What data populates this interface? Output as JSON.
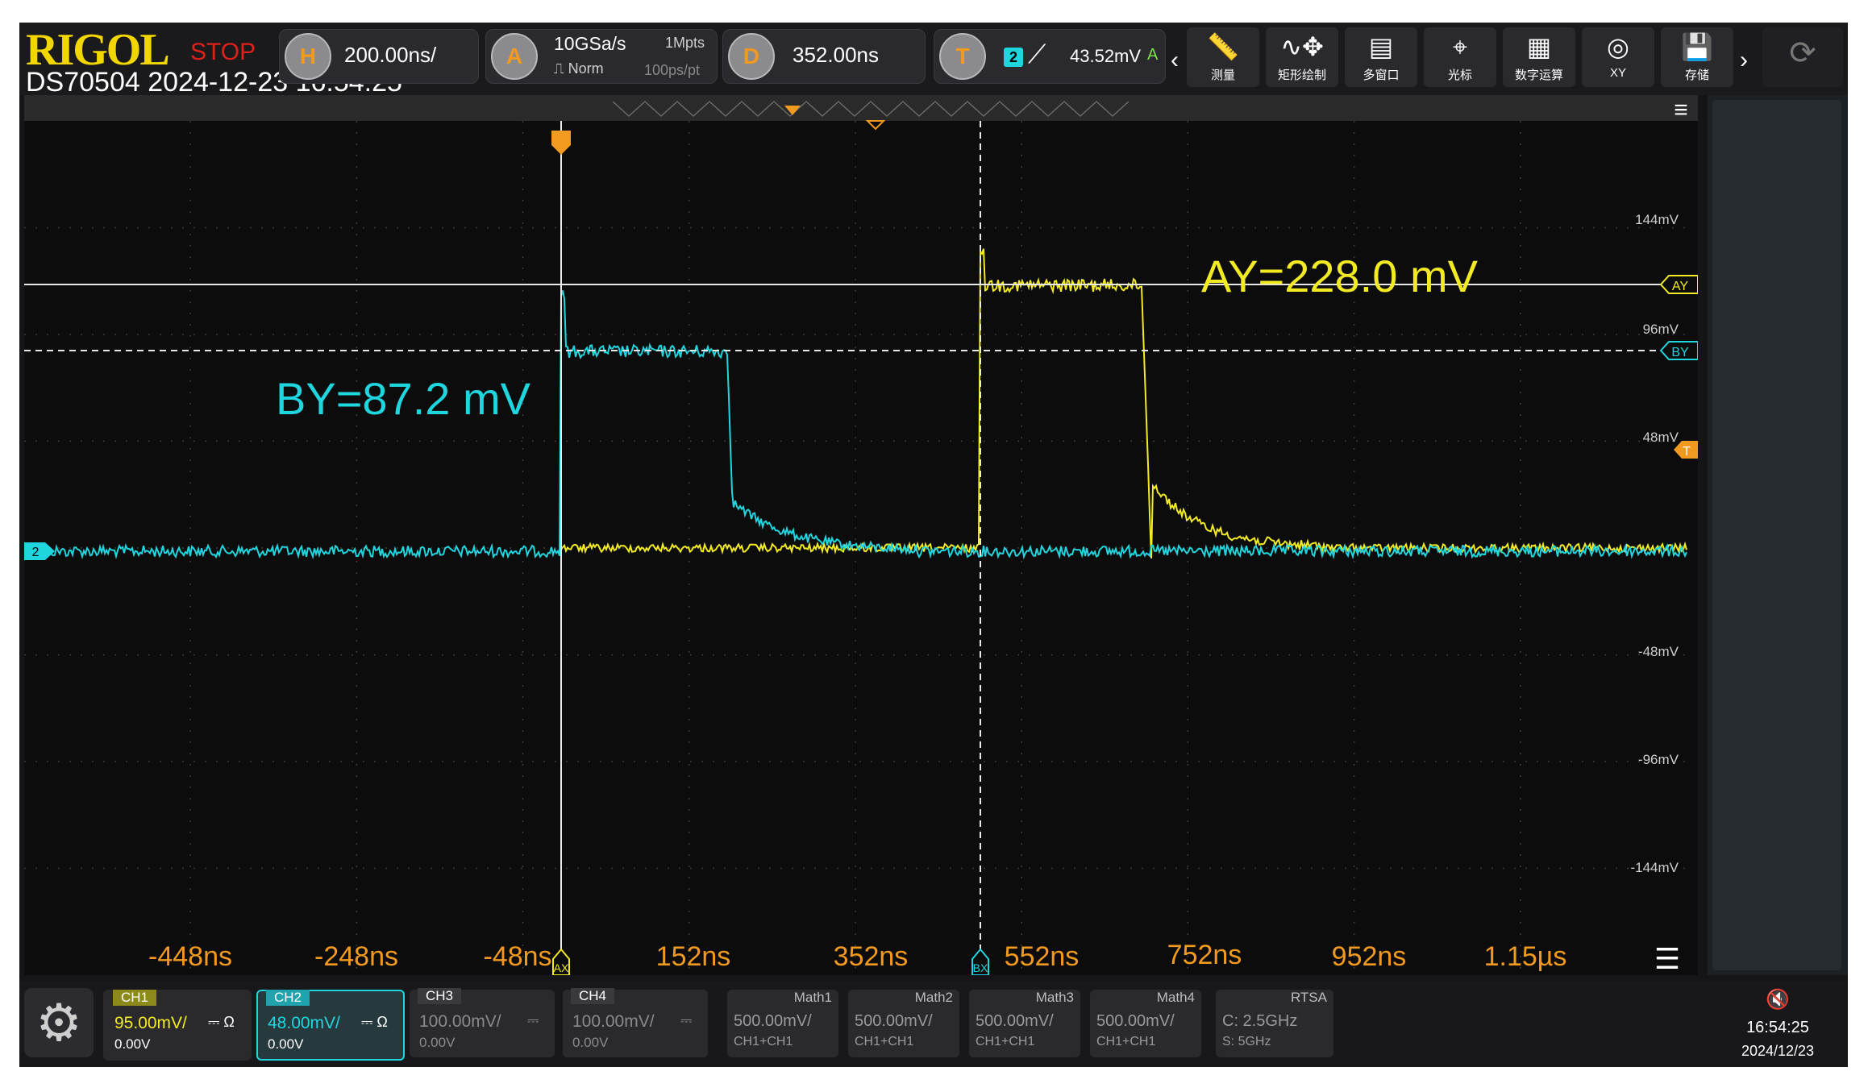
{
  "header": {
    "brand": "RIGOL",
    "run_state": "STOP",
    "model_time": "DS70504 2024-12-23 16:54:25",
    "horizontal": {
      "badge": "H",
      "scale": "200.00ns/"
    },
    "acquire": {
      "badge": "A",
      "rate": "10GSa/s",
      "depth": "1Mpts",
      "mode": "Norm",
      "resolution": "100ps/pt"
    },
    "delay": {
      "badge": "D",
      "value": "352.00ns"
    },
    "trigger": {
      "badge": "T",
      "source": "2",
      "level": "43.52mV",
      "suffix": "A"
    },
    "tools": [
      {
        "icon": "ruler-icon",
        "glyph": "📏",
        "label": "测量"
      },
      {
        "icon": "waveform-draw-icon",
        "glyph": "∿✥",
        "label": "矩形绘制"
      },
      {
        "icon": "multi-window-icon",
        "glyph": "▤",
        "label": "多窗口"
      },
      {
        "icon": "cursor-icon",
        "glyph": "⌖",
        "label": "光标"
      },
      {
        "icon": "math-icon",
        "glyph": "▦",
        "label": "数字运算"
      },
      {
        "icon": "xy-icon",
        "glyph": "◎",
        "label": "XY"
      },
      {
        "icon": "save-icon",
        "glyph": "💾",
        "label": "存储"
      }
    ]
  },
  "screen": {
    "cursor_ay": "AY=228.0 mV",
    "cursor_by": "BY=87.2 mV",
    "marker_ay": "AY",
    "marker_by": "BY",
    "marker_ax": "AX",
    "marker_bx": "BX",
    "trigger_marker": "T",
    "ch2_marker": "2",
    "y_labels": [
      "144mV",
      "96mV",
      "48mV",
      "-48mV",
      "-96mV",
      "-144mV"
    ],
    "time_labels": [
      "-448ns",
      "-248ns",
      "-48ns",
      "152ns",
      "352ns",
      "552ns",
      "752ns",
      "952ns",
      "1.15µs"
    ],
    "colors": {
      "ch1": "#f2ea22",
      "ch2": "#1fd5de",
      "time_labels": "#f29a1f",
      "grid": "#3c3c3c"
    }
  },
  "bottom": {
    "channels": [
      {
        "tag": "CH1",
        "scale": "95.00mV/",
        "coupling": "⎓ Ω",
        "offset": "0.00V",
        "color": "#f2ea22",
        "active": true
      },
      {
        "tag": "CH2",
        "scale": "48.00mV/",
        "coupling": "⎓ Ω",
        "offset": "0.00V",
        "color": "#1fd5de",
        "active": true
      },
      {
        "tag": "CH3",
        "scale": "100.00mV/",
        "coupling": "⎓",
        "offset": "0.00V",
        "color": "#8a8a8a",
        "active": false
      },
      {
        "tag": "CH4",
        "scale": "100.00mV/",
        "coupling": "⎓",
        "offset": "0.00V",
        "color": "#8a8a8a",
        "active": false
      }
    ],
    "maths": [
      {
        "tag": "Math1",
        "scale": "500.00mV/",
        "src": "CH1+CH1"
      },
      {
        "tag": "Math2",
        "scale": "500.00mV/",
        "src": "CH1+CH1"
      },
      {
        "tag": "Math3",
        "scale": "500.00mV/",
        "src": "CH1+CH1"
      },
      {
        "tag": "Math4",
        "scale": "500.00mV/",
        "src": "CH1+CH1"
      }
    ],
    "rtsa": {
      "tag": "RTSA",
      "center": "C: 2.5GHz",
      "span": "S: 5GHz"
    },
    "clock": {
      "time": "16:54:25",
      "date": "2024/12/23"
    }
  }
}
